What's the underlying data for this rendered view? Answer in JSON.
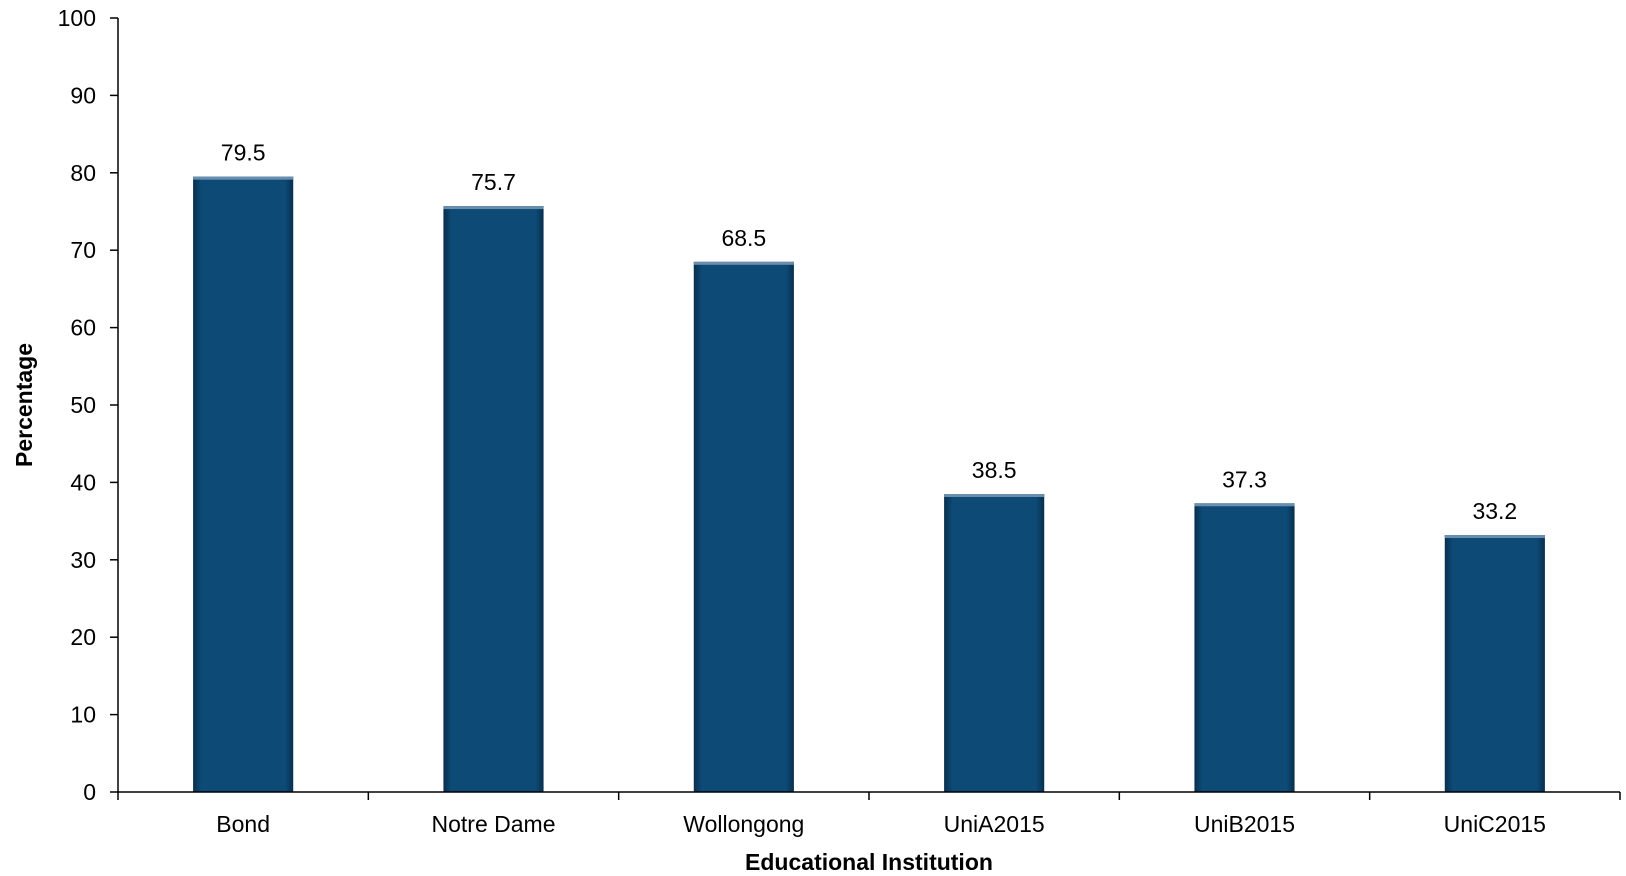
{
  "chart_data": {
    "type": "bar",
    "categories": [
      "Bond",
      "Notre Dame",
      "Wollongong",
      "UniA2015",
      "UniB2015",
      "UniC2015"
    ],
    "values": [
      79.5,
      75.7,
      68.5,
      38.5,
      37.3,
      33.2
    ],
    "data_labels": [
      "79.5",
      "75.7",
      "68.5",
      "38.5",
      "37.3",
      "33.2"
    ],
    "xlabel": "Educational Institution",
    "ylabel": "Percentage",
    "ylim": [
      0,
      100
    ],
    "yticks": [
      0,
      10,
      20,
      30,
      40,
      50,
      60,
      70,
      80,
      90,
      100
    ],
    "ytick_labels": [
      "0",
      "10",
      "20",
      "30",
      "40",
      "50",
      "60",
      "70",
      "80",
      "90",
      "100"
    ],
    "bar_color": "#0d4a76",
    "grid": false,
    "legend": "none"
  }
}
